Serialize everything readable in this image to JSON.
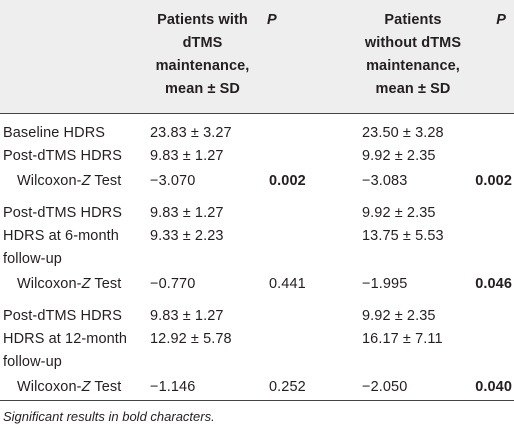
{
  "header": {
    "label": "",
    "group1": "Patients with dTMS maintenance, mean ± SD",
    "group1_lines": [
      "Patients with",
      "dTMS",
      "maintenance,",
      "mean ± SD"
    ],
    "p1": "P",
    "group2": "Patients without dTMS maintenance, mean ± SD",
    "group2_lines": [
      "Patients",
      "without dTMS",
      "maintenance,",
      "mean ± SD"
    ],
    "p2": "P"
  },
  "rows": [
    {
      "label": "Baseline HDRS",
      "v1": "23.83 ± 3.27",
      "p1": "",
      "v2": "23.50 ± 3.28",
      "p2": ""
    },
    {
      "label": "Post-dTMS HDRS",
      "v1": "9.83 ± 1.27",
      "p1": "",
      "v2": "9.92 ± 2.35",
      "p2": ""
    },
    {
      "label_pre": "Wilcoxon-",
      "label_italic": "Z",
      "label_post": " Test",
      "v1": "−3.070",
      "p1": "0.002",
      "p1_bold": true,
      "v2": "−3.083",
      "p2": "0.002",
      "p2_bold": true
    },
    {
      "label": "Post-dTMS HDRS",
      "v1": "9.83 ± 1.27",
      "p1": "",
      "v2": "9.92 ± 2.35",
      "p2": ""
    },
    {
      "label": "HDRS at 6-month",
      "v1": "9.33 ± 2.23",
      "p1": "",
      "v2": "13.75 ± 5.53",
      "p2": ""
    },
    {
      "label": "follow-up",
      "v1": "",
      "p1": "",
      "v2": "",
      "p2": ""
    },
    {
      "label_pre": "Wilcoxon-",
      "label_italic": "Z",
      "label_post": " Test",
      "v1": "−0.770",
      "p1": "0.441",
      "p1_bold": false,
      "v2": "−1.995",
      "p2": "0.046",
      "p2_bold": true
    },
    {
      "label": "Post-dTMS HDRS",
      "v1": "9.83 ± 1.27",
      "p1": "",
      "v2": "9.92 ± 2.35",
      "p2": ""
    },
    {
      "label": "HDRS at 12-month",
      "v1": "12.92 ± 5.78",
      "p1": "",
      "v2": "16.17 ± 7.11",
      "p2": ""
    },
    {
      "label": "follow-up",
      "v1": "",
      "p1": "",
      "v2": "",
      "p2": ""
    },
    {
      "label_pre": "Wilcoxon-",
      "label_italic": "Z",
      "label_post": " Test",
      "v1": "−1.146",
      "p1": "0.252",
      "p1_bold": false,
      "v2": "−2.050",
      "p2": "0.040",
      "p2_bold": true
    }
  ],
  "footnote": "Significant results in bold characters."
}
